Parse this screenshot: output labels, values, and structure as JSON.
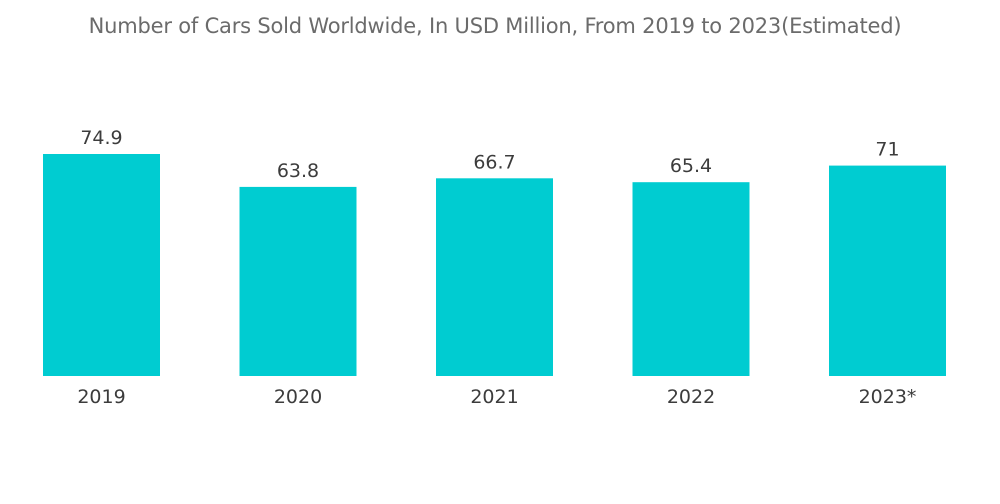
{
  "chart_data": {
    "type": "bar",
    "title": "Number of Cars Sold Worldwide, In USD Million, From 2019 to 2023(Estimated)",
    "categories": [
      "2019",
      "2020",
      "2021",
      "2022",
      "2023*"
    ],
    "values": [
      74.9,
      63.8,
      66.7,
      65.4,
      71
    ],
    "value_labels": [
      "74.9",
      "63.8",
      "66.7",
      "65.4",
      "71"
    ],
    "xlabel": "",
    "ylabel": "",
    "ylim": [
      0,
      74.9
    ],
    "grid": false,
    "legend": "none",
    "bar_color": "#00ccd1",
    "text_color": "#3c3c3c",
    "title_color": "#6b6b6b"
  }
}
